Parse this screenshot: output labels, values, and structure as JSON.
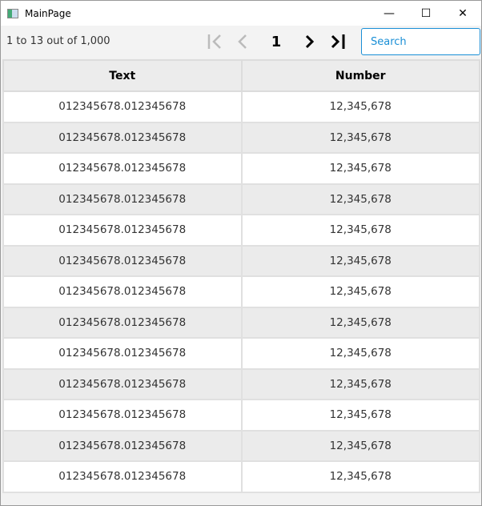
{
  "window": {
    "title": "MainPage",
    "minimize": "—",
    "maximize": "☐",
    "close": "✕"
  },
  "toolbar": {
    "count": "1 to 13 out of 1,000",
    "first": "|<",
    "prev": "<",
    "page": "1",
    "next": ">",
    "last": ">|",
    "search_placeholder": "Search"
  },
  "table": {
    "columns": [
      "Text",
      "Number"
    ],
    "rows": [
      [
        "012345678.012345678",
        "12,345,678"
      ],
      [
        "012345678.012345678",
        "12,345,678"
      ],
      [
        "012345678.012345678",
        "12,345,678"
      ],
      [
        "012345678.012345678",
        "12,345,678"
      ],
      [
        "012345678.012345678",
        "12,345,678"
      ],
      [
        "012345678.012345678",
        "12,345,678"
      ],
      [
        "012345678.012345678",
        "12,345,678"
      ],
      [
        "012345678.012345678",
        "12,345,678"
      ],
      [
        "012345678.012345678",
        "12,345,678"
      ],
      [
        "012345678.012345678",
        "12,345,678"
      ],
      [
        "012345678.012345678",
        "12,345,678"
      ],
      [
        "012345678.012345678",
        "12,345,678"
      ],
      [
        "012345678.012345678",
        "12,345,678"
      ]
    ]
  }
}
